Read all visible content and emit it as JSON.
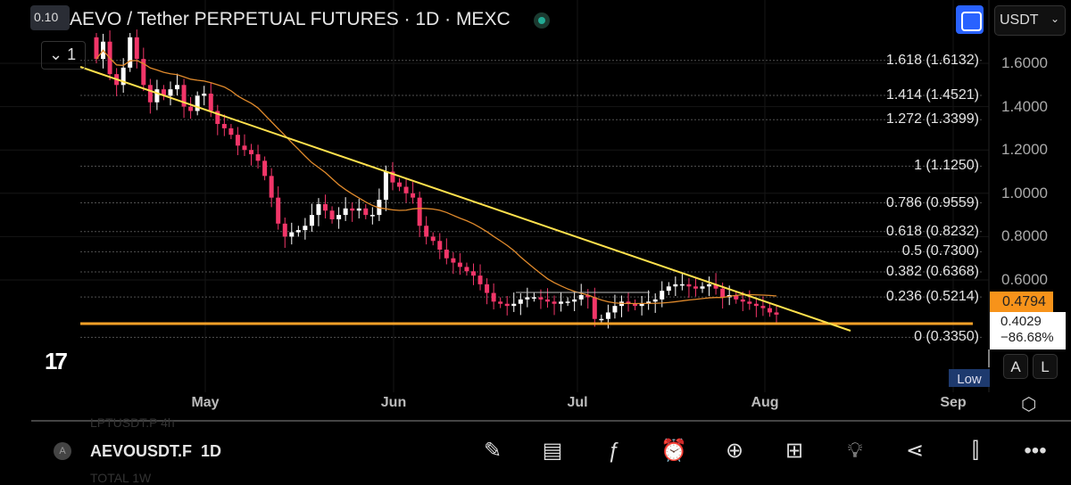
{
  "header": {
    "title": "AEVO / Tether PERPETUAL FUTURES · 1D · MEXC",
    "ohlc_badge": "0.10",
    "collapse_count": "1",
    "currency": "USDT"
  },
  "fib_levels": [
    {
      "label": "1.618 (1.6132)",
      "price": 1.6132
    },
    {
      "label": "1.414 (1.4521)",
      "price": 1.4521
    },
    {
      "label": "1.272 (1.3399)",
      "price": 1.3399
    },
    {
      "label": "1 (1.1250)",
      "price": 1.125
    },
    {
      "label": "0.786 (0.9559)",
      "price": 0.9559
    },
    {
      "label": "0.618 (0.8232)",
      "price": 0.8232
    },
    {
      "label": "0.5 (0.7300)",
      "price": 0.73
    },
    {
      "label": "0.382 (0.6368)",
      "price": 0.6368
    },
    {
      "label": "0.236 (0.5214)",
      "price": 0.5214
    },
    {
      "label": "0 (0.3350)",
      "price": 0.335
    }
  ],
  "price_axis": [
    "1.6000",
    "1.4000",
    "1.2000",
    "1.0000",
    "0.8000",
    "0.6000"
  ],
  "price_axis_values": [
    1.6,
    1.4,
    1.2,
    1.0,
    0.8,
    0.6
  ],
  "last_price": "0.4794",
  "crosshair": {
    "price": "0.4029",
    "change": "−86.68%"
  },
  "scale_buttons": [
    "A",
    "L"
  ],
  "low_label": "Low",
  "months": [
    "May",
    "Jun",
    "Jul",
    "Aug",
    "Sep"
  ],
  "watchlist": {
    "prev": "LPTUSDT.P  4h",
    "current_symbol": "AEVOUSDT.F",
    "current_interval": "1D",
    "next": "TOTAL  1W",
    "icon_letter": "A"
  },
  "toolbar": [
    "draw",
    "add-note",
    "indicators",
    "alert",
    "add",
    "layouts",
    "ideas",
    "share",
    "chart-type",
    "more"
  ],
  "colors": {
    "up": "#ffffff",
    "down": "#f23669",
    "ma": "#e08a2c",
    "trend": "#ffe14d",
    "support": "#f7a128",
    "fib": "#888888"
  },
  "closes": [
    1.62,
    1.7,
    1.55,
    1.5,
    1.58,
    1.72,
    1.62,
    1.5,
    1.42,
    1.48,
    1.45,
    1.48,
    1.5,
    1.4,
    1.38,
    1.45,
    1.46,
    1.38,
    1.32,
    1.3,
    1.27,
    1.22,
    1.2,
    1.18,
    1.15,
    1.08,
    0.98,
    0.86,
    0.8,
    0.82,
    0.83,
    0.85,
    0.9,
    0.95,
    0.92,
    0.88,
    0.9,
    0.93,
    0.92,
    0.93,
    0.9,
    0.9,
    0.97,
    1.1,
    1.05,
    1.03,
    1.0,
    0.98,
    0.85,
    0.8,
    0.78,
    0.74,
    0.7,
    0.68,
    0.66,
    0.64,
    0.62,
    0.58,
    0.54,
    0.5,
    0.49,
    0.48,
    0.49,
    0.51,
    0.52,
    0.52,
    0.51,
    0.5,
    0.49,
    0.5,
    0.5,
    0.51,
    0.53,
    0.52,
    0.42,
    0.42,
    0.45,
    0.48,
    0.5,
    0.49,
    0.48,
    0.49,
    0.5,
    0.51,
    0.55,
    0.57,
    0.58,
    0.58,
    0.57,
    0.56,
    0.57,
    0.58,
    0.56,
    0.52,
    0.53,
    0.51,
    0.5,
    0.49,
    0.48,
    0.47,
    0.45,
    0.44
  ]
}
